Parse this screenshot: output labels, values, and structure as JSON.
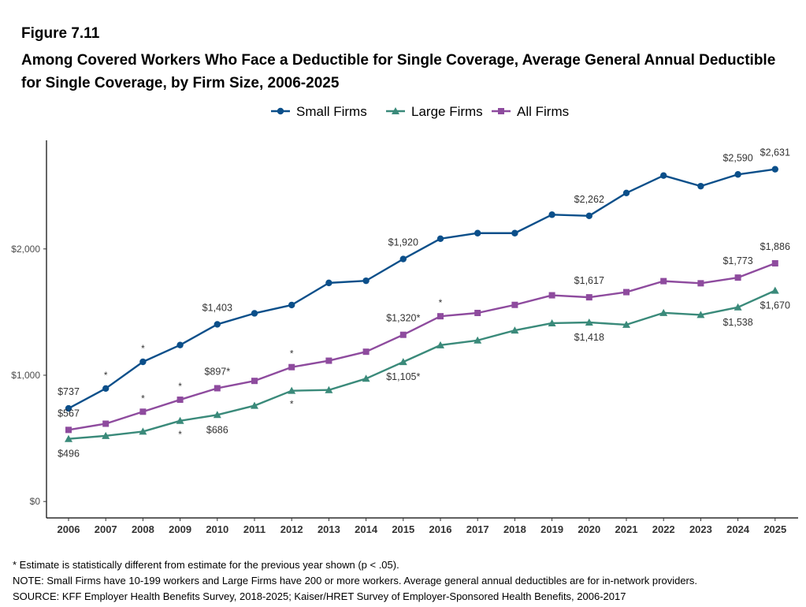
{
  "header": {
    "figure_label": "Figure 7.11",
    "title": "Among Covered Workers Who Face a Deductible for Single Coverage, Average General Annual Deductible for Single Coverage, by Firm Size, 2006-2025"
  },
  "footnotes": {
    "star": "* Estimate is statistically different from estimate for the previous year shown (p < .05).",
    "note": "NOTE: Small Firms have 10-199 workers and Large Firms have 200 or more workers. Average general annual deductibles are for in-network providers.",
    "source": "SOURCE: KFF Employer Health Benefits Survey, 2018-2025; Kaiser/HRET Survey of Employer-Sponsored Health Benefits, 2006-2017"
  },
  "chart_data": {
    "type": "line",
    "x": [
      "2006",
      "2007",
      "2008",
      "2009",
      "2010",
      "2011",
      "2012",
      "2013",
      "2014",
      "2015",
      "2016",
      "2017",
      "2018",
      "2019",
      "2020",
      "2021",
      "2022",
      "2023",
      "2024",
      "2025"
    ],
    "y_ticks": [
      {
        "value": 0,
        "label": "$0"
      },
      {
        "value": 1000,
        "label": "$1,000"
      },
      {
        "value": 2000,
        "label": "$2,000"
      }
    ],
    "ylim": [
      -130,
      2860
    ],
    "legend_position": "top-center",
    "series": [
      {
        "name": "Small Firms",
        "color": "#0b4f8a",
        "marker": "circle",
        "values": [
          737,
          895,
          1106,
          1239,
          1403,
          1490,
          1556,
          1731,
          1748,
          1920,
          2081,
          2125,
          2125,
          2271,
          2262,
          2443,
          2581,
          2497,
          2590,
          2631
        ],
        "labels": [
          {
            "index": 0,
            "text": "$737",
            "pos": "above"
          },
          {
            "index": 4,
            "text": "$1,403",
            "pos": "above"
          },
          {
            "index": 9,
            "text": "$1,920",
            "pos": "above"
          },
          {
            "index": 14,
            "text": "$2,262",
            "pos": "above"
          },
          {
            "index": 18,
            "text": "$2,590",
            "pos": "above"
          },
          {
            "index": 19,
            "text": "$2,631",
            "pos": "above"
          }
        ],
        "stars": [
          1,
          2
        ]
      },
      {
        "name": "Large Firms",
        "color": "#3a8a7a",
        "marker": "triangle",
        "values": [
          496,
          520,
          554,
          639,
          686,
          759,
          877,
          883,
          973,
          1105,
          1238,
          1276,
          1355,
          1412,
          1418,
          1400,
          1494,
          1478,
          1538,
          1670
        ],
        "labels": [
          {
            "index": 0,
            "text": "$496",
            "pos": "below"
          },
          {
            "index": 4,
            "text": "$686",
            "pos": "below"
          },
          {
            "index": 9,
            "text": "$1,105*",
            "pos": "below"
          },
          {
            "index": 14,
            "text": "$1,418",
            "pos": "below"
          },
          {
            "index": 18,
            "text": "$1,538",
            "pos": "below"
          },
          {
            "index": 19,
            "text": "$1,670",
            "pos": "below"
          }
        ],
        "stars": [
          3,
          6
        ]
      },
      {
        "name": "All Firms",
        "color": "#8e4b9e",
        "marker": "square",
        "values": [
          567,
          616,
          711,
          806,
          897,
          955,
          1064,
          1115,
          1186,
          1320,
          1467,
          1493,
          1557,
          1633,
          1617,
          1658,
          1745,
          1728,
          1773,
          1886
        ],
        "labels": [
          {
            "index": 0,
            "text": "$567",
            "pos": "above"
          },
          {
            "index": 4,
            "text": "$897*",
            "pos": "above"
          },
          {
            "index": 9,
            "text": "$1,320*",
            "pos": "above"
          },
          {
            "index": 14,
            "text": "$1,617",
            "pos": "above"
          },
          {
            "index": 18,
            "text": "$1,773",
            "pos": "above"
          },
          {
            "index": 19,
            "text": "$1,886",
            "pos": "above"
          }
        ],
        "stars": [
          2,
          3,
          6,
          10
        ]
      }
    ]
  }
}
